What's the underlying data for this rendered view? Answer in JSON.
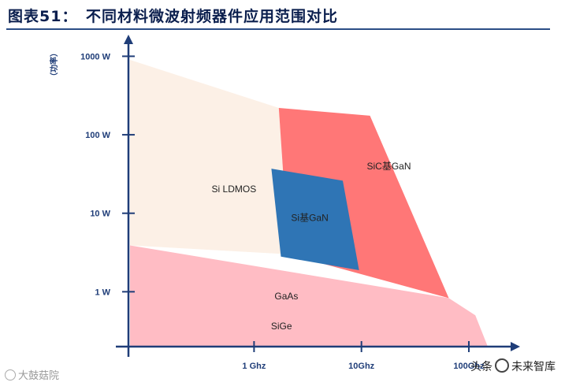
{
  "title": "图表51：　不同材料微波射频器件应用范围对比",
  "watermarks": {
    "left": "大鼓菇院",
    "right_prefix": "头条",
    "right_suffix": "未来智库"
  },
  "chart_data": {
    "type": "area",
    "title": "图表51：　不同材料微波射频器件应用范围对比",
    "ylabel": "（功率）",
    "xlabel": "",
    "y_scale": "log",
    "y_ticks": [
      {
        "label": "1 W",
        "value": 1
      },
      {
        "label": "10 W",
        "value": 10
      },
      {
        "label": "100 W",
        "value": 100
      },
      {
        "label": "1000 W",
        "value": 1000
      }
    ],
    "x_ticks": [
      {
        "label": "1 Ghz",
        "value": 1
      },
      {
        "label": "10Ghz",
        "value": 10
      },
      {
        "label": "100Ghz",
        "value": 100
      }
    ],
    "ylim": [
      0.2,
      1800
    ],
    "xlim": [
      0.07,
      300
    ],
    "regions": [
      {
        "name": "Si LDMOS",
        "color": "#fcf0e6",
        "points": [
          [
            0.07,
            900
          ],
          [
            1.7,
            220
          ],
          [
            2.1,
            3.0
          ],
          [
            0.07,
            3.9
          ]
        ],
        "label_at": [
          0.65,
          20
        ]
      },
      {
        "name": "SiC基GaN",
        "color": "#ff7777",
        "points": [
          [
            1.7,
            220
          ],
          [
            12,
            175
          ],
          [
            65,
            0.83
          ],
          [
            2.1,
            3.0
          ]
        ],
        "label_at": [
          18,
          39
        ]
      },
      {
        "name": "Si基GaN",
        "color": "#2f75b5",
        "points": [
          [
            1.45,
            37
          ],
          [
            6.7,
            26
          ],
          [
            9.5,
            1.88
          ],
          [
            1.78,
            2.8
          ]
        ],
        "label_at": [
          3.3,
          8.6
        ]
      },
      {
        "name": "GaAs",
        "color": "#ffbcc4",
        "points": [
          [
            0.07,
            3.9
          ],
          [
            65,
            0.83
          ],
          [
            115,
            0.5
          ],
          [
            150,
            0.2
          ],
          [
            0.07,
            0.2
          ]
        ],
        "label_at": [
          2.0,
          0.86
        ]
      },
      {
        "name": "SiGe",
        "color": "#c8eaf8",
        "points": [
          [
            0.07,
            0.74
          ],
          [
            100,
            0.37
          ],
          [
            150,
            0.2
          ],
          [
            0.07,
            0.2
          ]
        ],
        "label_at": [
          1.8,
          0.36
        ]
      }
    ]
  }
}
